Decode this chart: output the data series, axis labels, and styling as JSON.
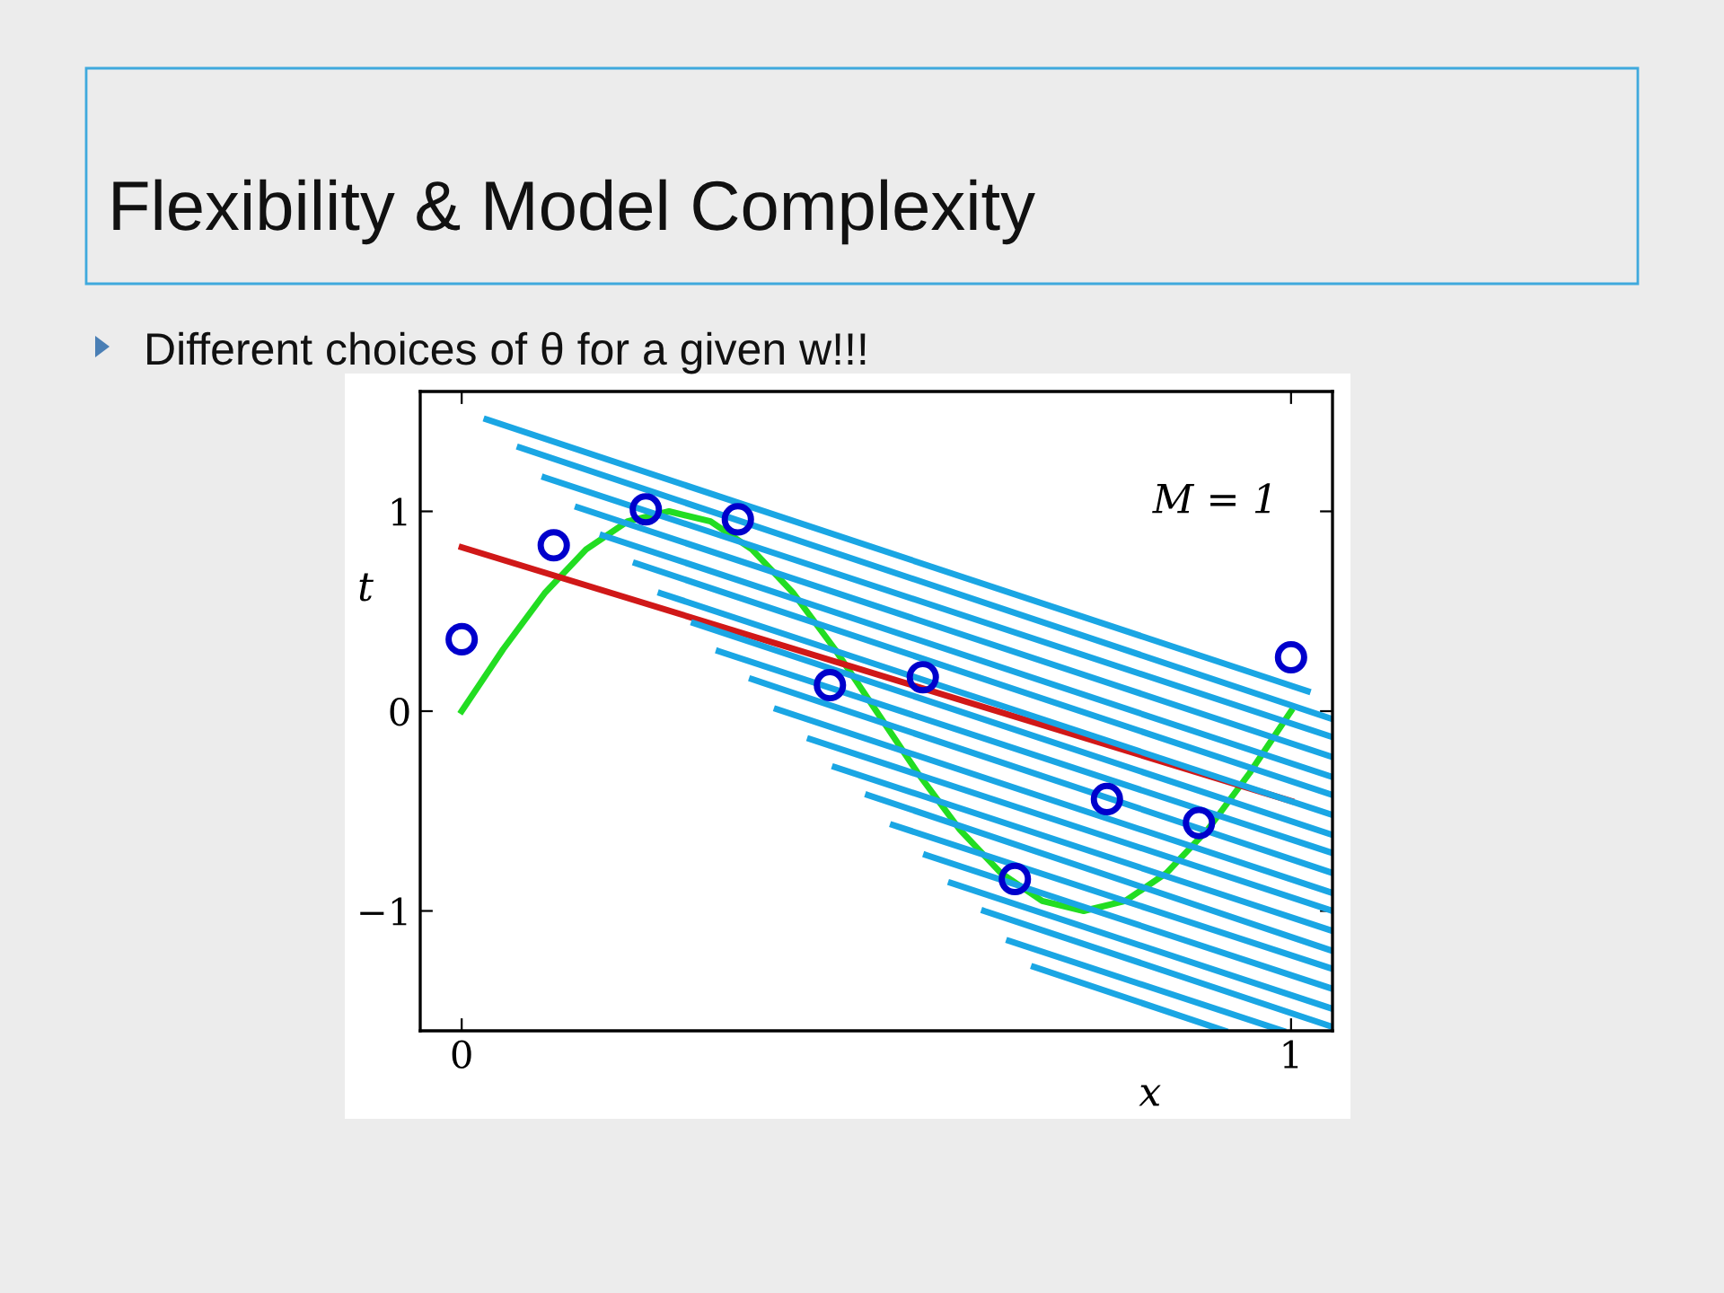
{
  "chart_data": {
    "type": "line",
    "title": "Flexibility & Model Complexity",
    "subtitle": "Different choices of θ for a given w!!!",
    "xlabel": "x",
    "ylabel": "t",
    "annotations": [
      "M = 1"
    ],
    "xlim": [
      -0.05,
      1.05
    ],
    "ylim": [
      -1.6,
      1.6
    ],
    "xticks": [
      0,
      1
    ],
    "yticks": [
      {
        "value": -1,
        "label": "−1"
      },
      0,
      1
    ],
    "grid": false,
    "legend": false,
    "series": [
      {
        "color": "#22dd22",
        "x": [
          0,
          0.05,
          0.1,
          0.15,
          0.2,
          0.25,
          0.3,
          0.35,
          0.4,
          0.45,
          0.5,
          0.55,
          0.6,
          0.65,
          0.7,
          0.75,
          0.8,
          0.85,
          0.9,
          0.95,
          1
        ],
        "values": [
          0,
          0.31,
          0.59,
          0.81,
          0.95,
          1,
          0.95,
          0.81,
          0.59,
          0.31,
          0,
          -0.31,
          -0.59,
          -0.81,
          -0.95,
          -1,
          -0.95,
          -0.81,
          -0.59,
          -0.31,
          0
        ]
      },
      {
        "color": "#d01818",
        "x": [
          0,
          1
        ],
        "values": [
          0.82,
          -0.45
        ]
      },
      {
        "color": "#1aa6e4",
        "x": [
          0.03,
          1.02
        ],
        "values": [
          1.46,
          0.1
        ]
      },
      {
        "color": "#1aa6e4",
        "x": [
          0.07,
          1.05
        ],
        "values": [
          1.32,
          -0.04
        ]
      },
      {
        "color": "#1aa6e4",
        "x": [
          0.1,
          1.05
        ],
        "values": [
          1.17,
          -0.13
        ]
      },
      {
        "color": "#1aa6e4",
        "x": [
          0.14,
          1.05
        ],
        "values": [
          1.02,
          -0.23
        ]
      },
      {
        "color": "#1aa6e4",
        "x": [
          0.17,
          1.05
        ],
        "values": [
          0.88,
          -0.33
        ]
      },
      {
        "color": "#1aa6e4",
        "x": [
          0.21,
          1.05
        ],
        "values": [
          0.74,
          -0.42
        ]
      },
      {
        "color": "#1aa6e4",
        "x": [
          0.24,
          1.05
        ],
        "values": [
          0.59,
          -0.52
        ]
      },
      {
        "color": "#1aa6e4",
        "x": [
          0.28,
          1.05
        ],
        "values": [
          0.44,
          -0.62
        ]
      },
      {
        "color": "#1aa6e4",
        "x": [
          0.31,
          1.05
        ],
        "values": [
          0.3,
          -0.71
        ]
      },
      {
        "color": "#1aa6e4",
        "x": [
          0.35,
          1.05
        ],
        "values": [
          0.16,
          -0.81
        ]
      },
      {
        "color": "#1aa6e4",
        "x": [
          0.38,
          1.05
        ],
        "values": [
          0.01,
          -0.91
        ]
      },
      {
        "color": "#1aa6e4",
        "x": [
          0.42,
          1.05
        ],
        "values": [
          -0.14,
          -1.0
        ]
      },
      {
        "color": "#1aa6e4",
        "x": [
          0.45,
          1.05
        ],
        "values": [
          -0.28,
          -1.1
        ]
      },
      {
        "color": "#1aa6e4",
        "x": [
          0.49,
          1.05
        ],
        "values": [
          -0.42,
          -1.2
        ]
      },
      {
        "color": "#1aa6e4",
        "x": [
          0.52,
          1.05
        ],
        "values": [
          -0.57,
          -1.29
        ]
      },
      {
        "color": "#1aa6e4",
        "x": [
          0.56,
          1.05
        ],
        "values": [
          -0.72,
          -1.39
        ]
      },
      {
        "color": "#1aa6e4",
        "x": [
          0.59,
          1.05
        ],
        "values": [
          -0.86,
          -1.49
        ]
      },
      {
        "color": "#1aa6e4",
        "x": [
          0.63,
          1.05
        ],
        "values": [
          -1.0,
          -1.58
        ]
      },
      {
        "color": "#1aa6e4",
        "x": [
          0.66,
          0.99
        ],
        "values": [
          -1.15,
          -1.6
        ]
      },
      {
        "color": "#1aa6e4",
        "x": [
          0.69,
          0.92
        ],
        "values": [
          -1.28,
          -1.6
        ]
      },
      {
        "type": "scatter",
        "color": "#0000cc",
        "marker": "circle",
        "x": [
          0,
          0.111,
          0.222,
          0.333,
          0.444,
          0.556,
          0.667,
          0.778,
          0.889,
          1
        ],
        "values": [
          0.36,
          0.83,
          1.01,
          0.96,
          0.13,
          0.17,
          -0.84,
          -0.44,
          -0.56,
          0.27
        ]
      }
    ]
  }
}
